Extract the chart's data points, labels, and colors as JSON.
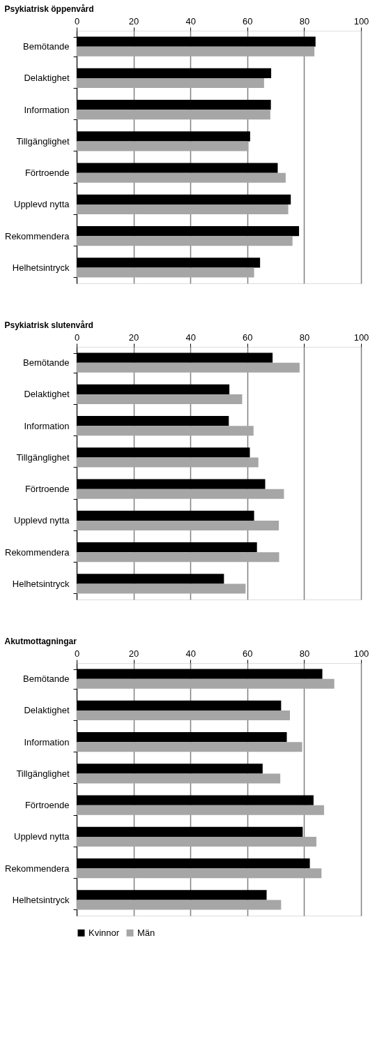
{
  "chart_data": [
    {
      "type": "bar",
      "orientation": "horizontal",
      "title": "Psykiatrisk öppenvård",
      "categories": [
        "Bemötande",
        "Delaktighet",
        "Information",
        "Tillgänglighet",
        "Förtroende",
        "Upplevd nytta",
        "Rekommendera",
        "Helhetsintryck"
      ],
      "series": [
        {
          "color": "#000000",
          "values": [
            84.0,
            68.4,
            68.3,
            61.0,
            70.7,
            75.3,
            78.2,
            64.5
          ]
        },
        {
          "color": "#a6a6a6",
          "values": [
            83.6,
            65.9,
            68.1,
            60.4,
            73.5,
            74.4,
            75.9,
            62.4
          ]
        }
      ],
      "xlim": [
        0,
        100
      ],
      "xticks": [
        0,
        20,
        40,
        60,
        80,
        100
      ],
      "grid": "x"
    },
    {
      "type": "bar",
      "orientation": "horizontal",
      "title": "Psykiatrisk slutenvård",
      "categories": [
        "Bemötande",
        "Delaktighet",
        "Information",
        "Tillgänglighet",
        "Förtroende",
        "Upplevd nytta",
        "Rekommendera",
        "Helhetsintryck"
      ],
      "series": [
        {
          "color": "#000000",
          "values": [
            68.9,
            53.7,
            53.5,
            60.9,
            66.3,
            62.4,
            63.4,
            51.8
          ]
        },
        {
          "color": "#a6a6a6",
          "values": [
            78.4,
            58.2,
            62.2,
            63.9,
            72.9,
            71.1,
            71.2,
            59.4
          ]
        }
      ],
      "xlim": [
        0,
        100
      ],
      "xticks": [
        0,
        20,
        40,
        60,
        80,
        100
      ],
      "grid": "x"
    },
    {
      "type": "bar",
      "orientation": "horizontal",
      "title": "Akutmottagningar",
      "categories": [
        "Bemötande",
        "Delaktighet",
        "Information",
        "Tillgänglighet",
        "Förtroende",
        "Upplevd nytta",
        "Rekommendera",
        "Helhetsintryck"
      ],
      "series": [
        {
          "name": "Kvinnor",
          "color": "#000000",
          "values": [
            86.4,
            71.9,
            73.9,
            65.4,
            83.3,
            79.5,
            82.0,
            66.8
          ]
        },
        {
          "name": "Män",
          "color": "#a6a6a6",
          "values": [
            90.6,
            75.0,
            79.3,
            71.6,
            87.0,
            84.3,
            86.1,
            71.9
          ]
        }
      ],
      "xlim": [
        0,
        100
      ],
      "xticks": [
        0,
        20,
        40,
        60,
        80,
        100
      ],
      "grid": "x",
      "legend": "bottom"
    }
  ]
}
